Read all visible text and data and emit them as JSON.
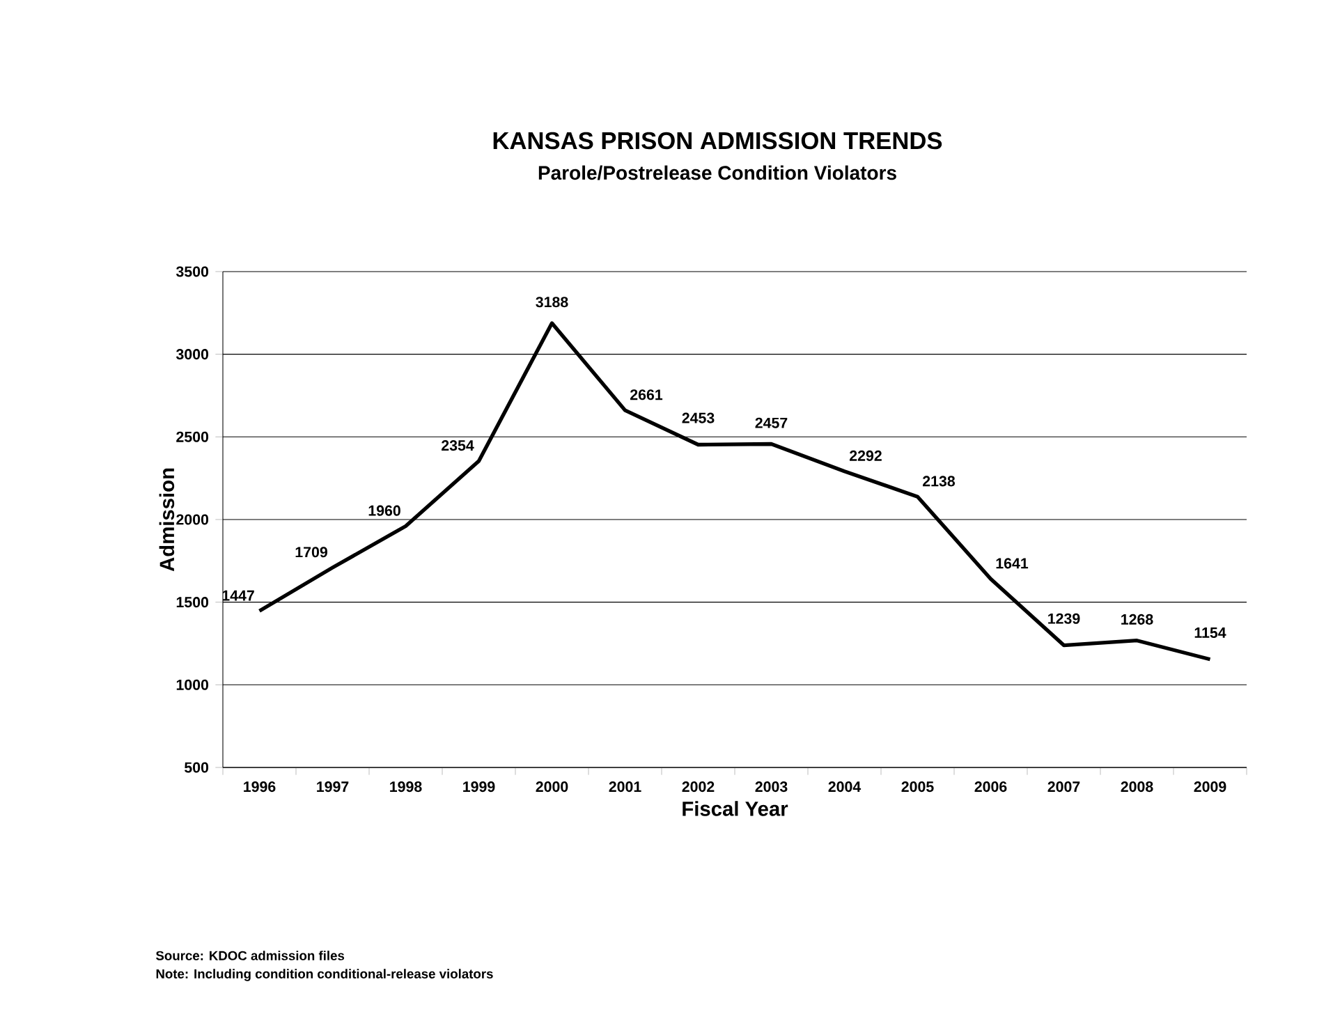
{
  "chart_data": {
    "type": "line",
    "title": "KANSAS PRISON ADMISSION TRENDS",
    "subtitle": "Parole/Postrelease Condition Violators",
    "xlabel": "Fiscal Year",
    "ylabel": "Admission",
    "categories": [
      "1996",
      "1997",
      "1998",
      "1999",
      "2000",
      "2001",
      "2002",
      "2003",
      "2004",
      "2005",
      "2006",
      "2007",
      "2008",
      "2009"
    ],
    "values": [
      1447,
      1709,
      1960,
      2354,
      3188,
      2661,
      2453,
      2457,
      2292,
      2138,
      1641,
      1239,
      1268,
      1154
    ],
    "color": "#000000",
    "ylim": [
      500,
      3500
    ],
    "yticks": [
      500,
      1000,
      1500,
      2000,
      2500,
      3000,
      3500
    ],
    "grid": "y",
    "data_labels": true,
    "marker": "none",
    "line_style": "solid",
    "annotations": [
      "Source: KDOC admission files",
      "Note: Including condition conditional-release violators"
    ]
  }
}
